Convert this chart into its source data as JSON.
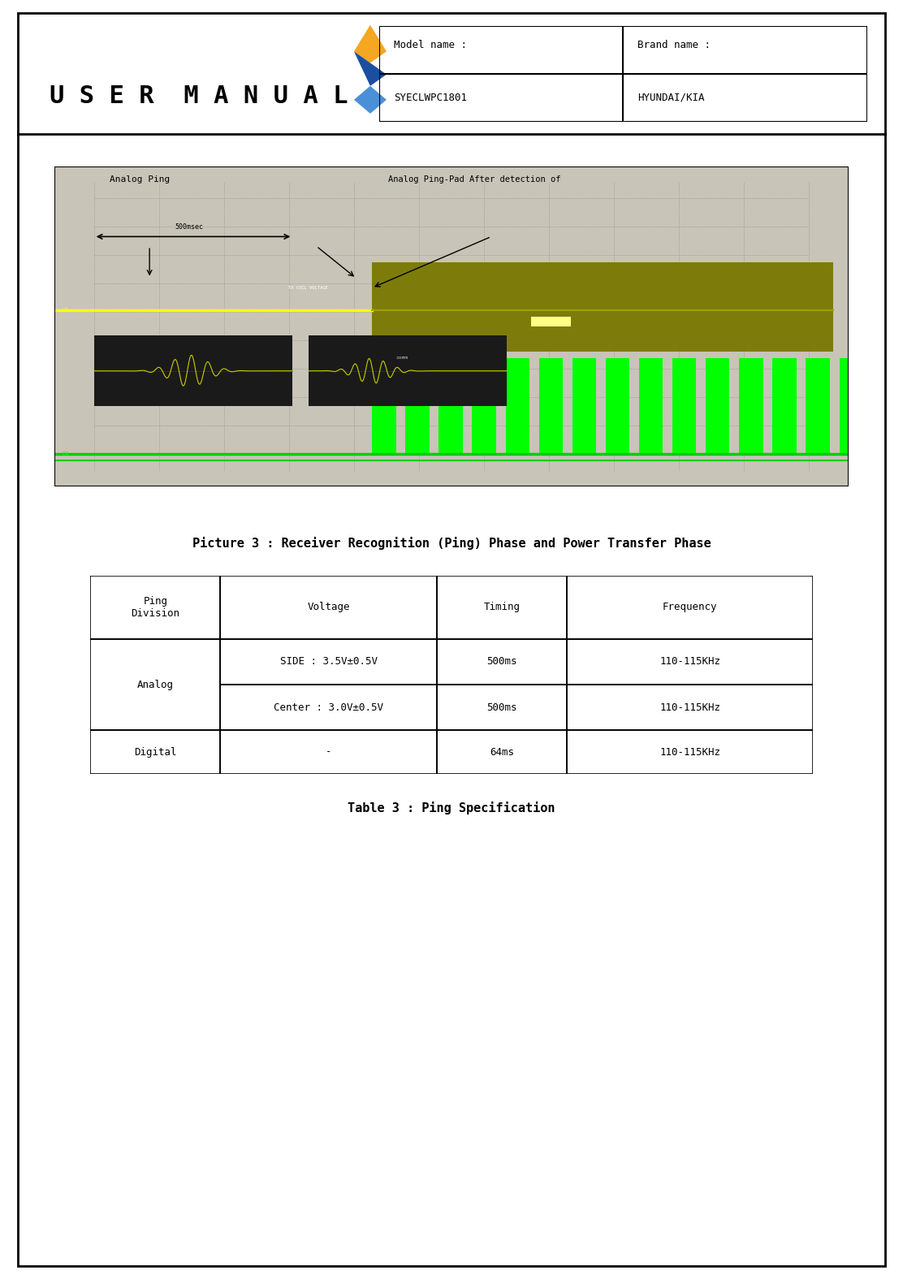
{
  "page_width": 11.12,
  "page_height": 15.75,
  "bg_color": "#ffffff",
  "header": {
    "title": "U S E R  M A N U A L",
    "model_label": "Model name :",
    "model_value": "SYECLWPC1801",
    "brand_label": "Brand name :",
    "brand_value": "HYUNDAI/KIA"
  },
  "picture_caption": "Picture 3 : Receiver Recognition (Ping) Phase and Power Transfer Phase",
  "table_caption": "Table 3 : Ping Specification",
  "table_headers": [
    "Ping\nDivision",
    "Voltage",
    "Timing",
    "Frequency"
  ],
  "table_rows": [
    [
      "Analog",
      "SIDE : 3.5V±0.5V",
      "500ms",
      "110-115KHz"
    ],
    [
      "Analog",
      "Center : 3.0V±0.5V",
      "500ms",
      "110-115KHz"
    ],
    [
      "Digital",
      "-",
      "64ms",
      "110-115KHz"
    ]
  ],
  "oscilloscope": {
    "analog_ping_label": "Analog Ping",
    "analog_ping_pad_label": "Analog Ping-Pad After detection of",
    "time_label": "500msec",
    "tx_coil_label": "TX COIL VOLTAGE",
    "comm_label": "comm",
    "bg_color": "#d4d0c8",
    "olive_color": "#808000",
    "green_color": "#00ff00",
    "yellow_color": "#ffff00",
    "dark_olive": "#6b6b00"
  },
  "logo_colors": {
    "gold": "#f5a623",
    "blue": "#1a4fa0",
    "light_blue": "#4a90d9"
  }
}
